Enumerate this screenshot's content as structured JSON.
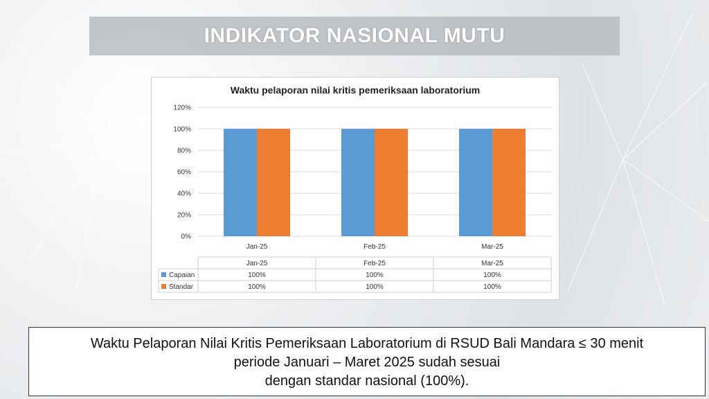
{
  "header": {
    "title": "INDIKATOR NASIONAL MUTU"
  },
  "chart_data": {
    "type": "bar",
    "title": "Waktu pelaporan nilai kritis pemeriksaan laboratorium",
    "categories": [
      "Jan-25",
      "Feb-25",
      "Mar-25"
    ],
    "series": [
      {
        "name": "Capaian",
        "values": [
          100,
          100,
          100
        ],
        "color": "#5B9BD5"
      },
      {
        "name": "Standar",
        "values": [
          100,
          100,
          100
        ],
        "color": "#ED7D31"
      }
    ],
    "ylim": [
      0,
      120
    ],
    "yticks": [
      0,
      20,
      40,
      60,
      80,
      100,
      120
    ],
    "ytick_labels": [
      "0%",
      "20%",
      "40%",
      "60%",
      "80%",
      "100%",
      "120%"
    ],
    "grid": true,
    "data_table": {
      "rows": [
        {
          "label": "Capaian",
          "cells": [
            "100%",
            "100%",
            "100%"
          ]
        },
        {
          "label": "Standar",
          "cells": [
            "100%",
            "100%",
            "100%"
          ]
        }
      ]
    }
  },
  "caption": {
    "line1": "Waktu Pelaporan Nilai Kritis Pemeriksaan Laboratorium di RSUD Bali Mandara ≤ 30 menit",
    "line2": "periode Januari – Maret 2025 sudah sesuai",
    "line3": "dengan standar nasional (100%)."
  }
}
